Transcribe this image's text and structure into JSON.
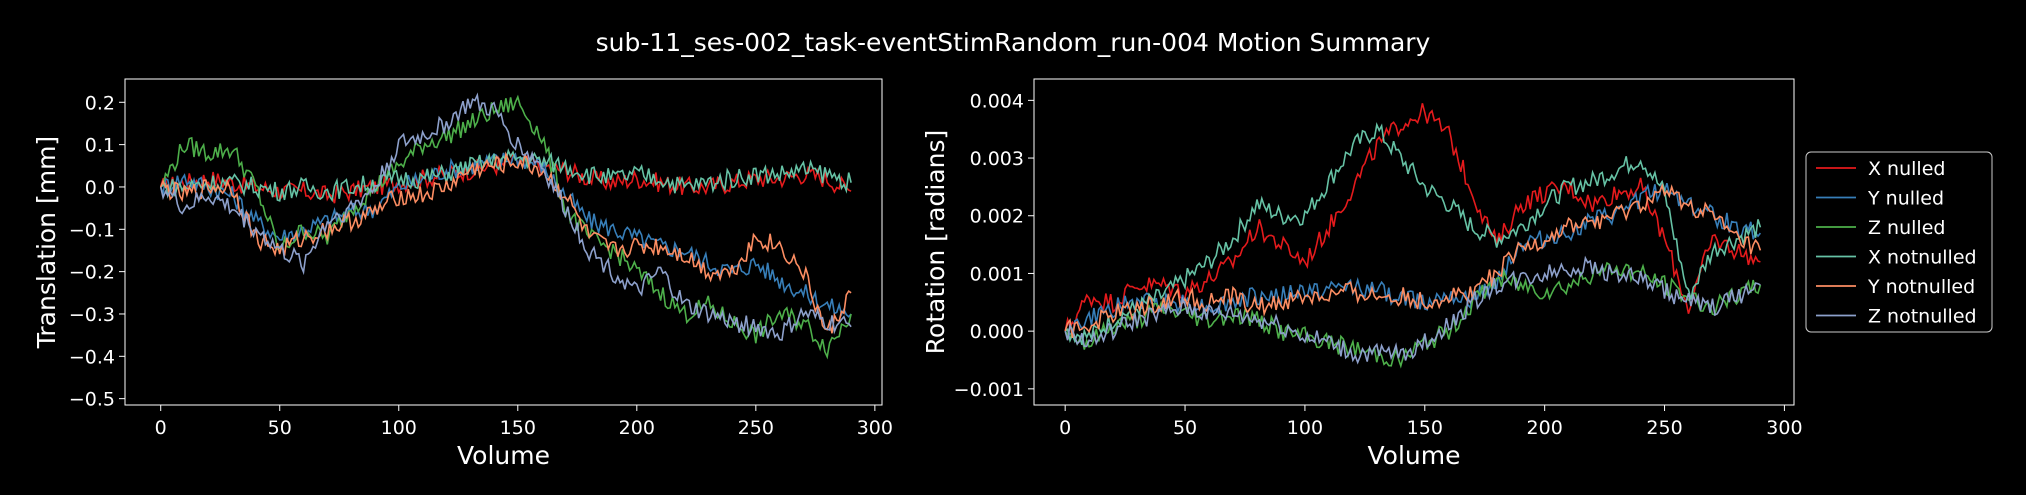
{
  "figure": {
    "title": "sub-11_ses-002_task-eventStimRandom_run-004 Motion Summary"
  },
  "colors": {
    "background": "#000000",
    "foreground": "#ffffff",
    "series": [
      "#e41a1c",
      "#377eb8",
      "#4daf4a",
      "#66c2a5",
      "#fc8d62",
      "#8da0cb"
    ]
  },
  "chart_data": [
    {
      "type": "line",
      "xlabel": "Volume",
      "ylabel": "Translation [mm]",
      "xlim": [
        -15,
        303
      ],
      "ylim": [
        -0.515,
        0.255
      ],
      "xticks": [
        0,
        50,
        100,
        150,
        200,
        250,
        300
      ],
      "yticks": [
        -0.5,
        -0.4,
        -0.3,
        -0.2,
        -0.1,
        0.0,
        0.1,
        0.2
      ],
      "ytick_labels": [
        "−0.5",
        "−0.4",
        "−0.3",
        "−0.2",
        "−0.1",
        "0.0",
        "0.1",
        "0.2"
      ],
      "grid": false,
      "x": [
        0,
        10,
        20,
        30,
        40,
        50,
        60,
        70,
        80,
        90,
        100,
        110,
        120,
        130,
        140,
        150,
        160,
        170,
        180,
        190,
        200,
        210,
        220,
        230,
        240,
        250,
        260,
        270,
        280,
        290
      ],
      "series": [
        {
          "name": "X nulled",
          "values": [
            0.0,
            0.01,
            0.02,
            0.01,
            0.0,
            -0.01,
            -0.01,
            -0.02,
            -0.01,
            0.0,
            0.01,
            0.02,
            0.03,
            0.04,
            0.05,
            0.06,
            0.05,
            0.04,
            0.02,
            0.01,
            0.02,
            0.01,
            0.0,
            0.0,
            0.01,
            0.02,
            0.02,
            0.03,
            0.02,
            -0.01
          ]
        },
        {
          "name": "Y nulled",
          "values": [
            0.0,
            0.02,
            0.0,
            -0.02,
            -0.08,
            -0.12,
            -0.1,
            -0.08,
            -0.06,
            -0.05,
            0.0,
            0.02,
            0.04,
            0.05,
            0.06,
            0.07,
            0.05,
            -0.02,
            -0.08,
            -0.1,
            -0.12,
            -0.14,
            -0.15,
            -0.18,
            -0.2,
            -0.18,
            -0.22,
            -0.25,
            -0.28,
            -0.3
          ]
        },
        {
          "name": "Z nulled",
          "values": [
            0.0,
            0.1,
            0.08,
            0.09,
            0.0,
            -0.15,
            -0.1,
            -0.12,
            -0.05,
            0.0,
            0.05,
            0.1,
            0.12,
            0.15,
            0.18,
            0.2,
            0.12,
            -0.05,
            -0.12,
            -0.15,
            -0.2,
            -0.25,
            -0.3,
            -0.28,
            -0.32,
            -0.35,
            -0.3,
            -0.32,
            -0.38,
            -0.3
          ]
        },
        {
          "name": "X notnulled",
          "values": [
            0.0,
            0.0,
            0.01,
            0.01,
            0.0,
            -0.01,
            0.0,
            -0.01,
            0.0,
            0.01,
            0.02,
            0.02,
            0.03,
            0.05,
            0.06,
            0.07,
            0.06,
            0.05,
            0.03,
            0.02,
            0.03,
            0.02,
            0.0,
            0.01,
            0.02,
            0.03,
            0.03,
            0.04,
            0.03,
            0.01
          ]
        },
        {
          "name": "Y notnulled",
          "values": [
            0.0,
            -0.02,
            0.0,
            0.0,
            -0.12,
            -0.15,
            -0.12,
            -0.1,
            -0.08,
            -0.06,
            -0.02,
            -0.02,
            0.0,
            0.04,
            0.05,
            0.06,
            0.04,
            -0.02,
            -0.12,
            -0.15,
            -0.14,
            -0.14,
            -0.16,
            -0.2,
            -0.2,
            -0.12,
            -0.14,
            -0.2,
            -0.35,
            -0.25
          ]
        },
        {
          "name": "Z notnulled",
          "values": [
            0.0,
            -0.05,
            -0.02,
            -0.05,
            -0.1,
            -0.15,
            -0.18,
            -0.08,
            -0.05,
            0.0,
            0.1,
            0.12,
            0.15,
            0.2,
            0.18,
            0.1,
            0.05,
            -0.05,
            -0.15,
            -0.2,
            -0.25,
            -0.2,
            -0.28,
            -0.3,
            -0.32,
            -0.33,
            -0.35,
            -0.3,
            -0.32,
            -0.33
          ]
        }
      ]
    },
    {
      "type": "line",
      "xlabel": "Volume",
      "ylabel": "Rotation [radians]",
      "xlim": [
        -13,
        304
      ],
      "ylim": [
        -0.00128,
        0.00437
      ],
      "xticks": [
        0,
        50,
        100,
        150,
        200,
        250,
        300
      ],
      "yticks": [
        -0.001,
        0.0,
        0.001,
        0.002,
        0.003,
        0.004
      ],
      "ytick_labels": [
        "−0.001",
        "0.000",
        "0.001",
        "0.002",
        "0.003",
        "0.004"
      ],
      "grid": false,
      "x": [
        0,
        10,
        20,
        30,
        40,
        50,
        60,
        70,
        80,
        90,
        100,
        110,
        120,
        130,
        140,
        150,
        160,
        170,
        180,
        190,
        200,
        210,
        220,
        230,
        240,
        250,
        260,
        270,
        280,
        290
      ],
      "series": [
        {
          "name": "X nulled",
          "values": [
            0.0,
            0.0006,
            0.0005,
            0.0008,
            0.0008,
            0.0007,
            0.0009,
            0.0012,
            0.0018,
            0.0015,
            0.0012,
            0.0018,
            0.0025,
            0.0032,
            0.0036,
            0.0038,
            0.0034,
            0.0024,
            0.0015,
            0.0022,
            0.0024,
            0.0025,
            0.0022,
            0.0024,
            0.0025,
            0.0016,
            0.0004,
            0.0016,
            0.0014,
            0.0012
          ]
        },
        {
          "name": "Y nulled",
          "values": [
            0.0,
            0.0002,
            0.0004,
            0.0005,
            0.0005,
            0.0005,
            0.0004,
            0.0005,
            0.0006,
            0.0006,
            0.0007,
            0.0007,
            0.0008,
            0.0007,
            0.0006,
            0.0005,
            0.0007,
            0.0005,
            0.0009,
            0.0015,
            0.0016,
            0.0017,
            0.0019,
            0.002,
            0.0023,
            0.0025,
            0.0022,
            0.002,
            0.0018,
            0.0017
          ]
        },
        {
          "name": "Z nulled",
          "values": [
            0.0,
            -0.0002,
            0.0001,
            0.0002,
            0.0004,
            0.0003,
            0.0002,
            0.0003,
            0.0002,
            0.0,
            -0.0001,
            -0.0002,
            -0.0003,
            -0.0004,
            -0.0005,
            -0.0002,
            0.0,
            0.0005,
            0.0009,
            0.0008,
            0.0007,
            0.0008,
            0.001,
            0.0011,
            0.001,
            0.0008,
            0.0006,
            0.0004,
            0.0006,
            0.0008
          ]
        },
        {
          "name": "X notnulled",
          "values": [
            0.0,
            -0.0001,
            0.0002,
            0.0004,
            0.0006,
            0.0009,
            0.0012,
            0.0016,
            0.0022,
            0.002,
            0.002,
            0.0026,
            0.0032,
            0.0035,
            0.003,
            0.0025,
            0.0022,
            0.0018,
            0.0016,
            0.0018,
            0.0022,
            0.0025,
            0.0026,
            0.0028,
            0.003,
            0.0024,
            0.0006,
            0.0014,
            0.0016,
            0.0018
          ]
        },
        {
          "name": "Y notnulled",
          "values": [
            0.0,
            0.0001,
            0.0003,
            0.0004,
            0.0005,
            0.0006,
            0.0005,
            0.0006,
            0.0004,
            0.0005,
            0.0006,
            0.0006,
            0.0007,
            0.0006,
            0.0006,
            0.0005,
            0.0006,
            0.0007,
            0.001,
            0.0014,
            0.0016,
            0.0018,
            0.0019,
            0.002,
            0.0022,
            0.0024,
            0.0022,
            0.002,
            0.0016,
            0.0014
          ]
        },
        {
          "name": "Z notnulled",
          "values": [
            0.0,
            -0.0002,
            0.0,
            0.0002,
            0.0003,
            0.0004,
            0.0003,
            0.0003,
            0.0002,
            0.0001,
            -0.0001,
            -0.0002,
            -0.0004,
            -0.0004,
            -0.0004,
            -0.0002,
            0.0001,
            0.0005,
            0.0008,
            0.0009,
            0.001,
            0.0011,
            0.0011,
            0.001,
            0.0009,
            0.0007,
            0.0005,
            0.0004,
            0.0006,
            0.0008
          ]
        }
      ]
    }
  ]
}
